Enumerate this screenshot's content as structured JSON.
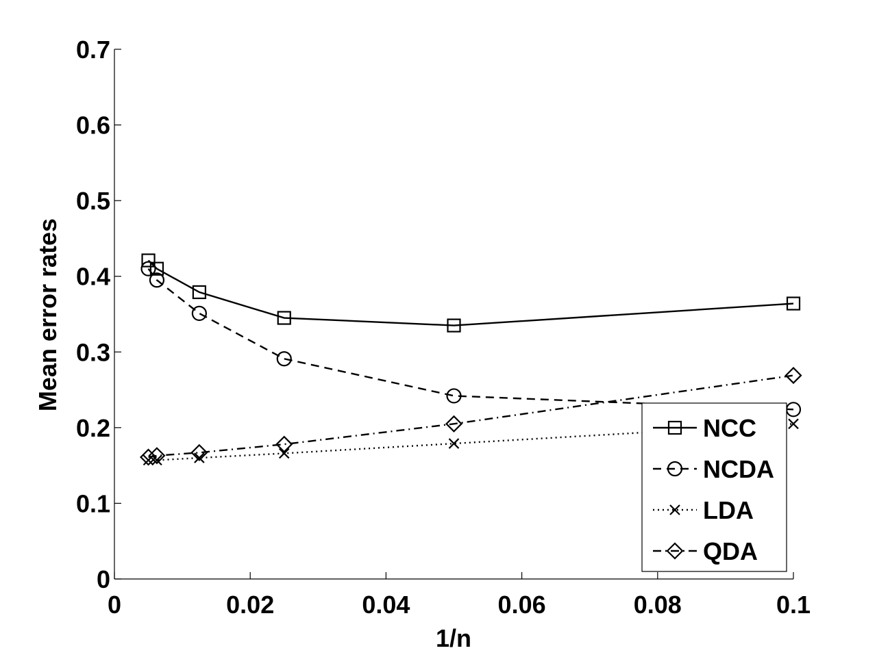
{
  "chart_data": {
    "type": "line",
    "title": "",
    "xlabel": "1/n",
    "ylabel": "Mean error rates",
    "xlim": [
      0,
      0.1
    ],
    "ylim": [
      0,
      0.7
    ],
    "xticks": [
      0,
      0.02,
      0.04,
      0.06,
      0.08,
      0.1
    ],
    "xtick_labels": [
      "0",
      "0.02",
      "0.04",
      "0.06",
      "0.08",
      "0.1"
    ],
    "yticks": [
      0,
      0.1,
      0.2,
      0.3,
      0.4,
      0.5,
      0.6,
      0.7
    ],
    "ytick_labels": [
      "0",
      "0.1",
      "0.2",
      "0.3",
      "0.4",
      "0.5",
      "0.6",
      "0.7"
    ],
    "grid": false,
    "legend_position": "bottom-right",
    "x": [
      0.005,
      0.00625,
      0.0125,
      0.025,
      0.05,
      0.1
    ],
    "series": [
      {
        "name": "NCC",
        "marker": "square",
        "line_style": "solid",
        "values": [
          0.421,
          0.41,
          0.379,
          0.345,
          0.335,
          0.364
        ]
      },
      {
        "name": "NCDA",
        "marker": "circle",
        "line_style": "dashed",
        "values": [
          0.41,
          0.395,
          0.351,
          0.291,
          0.242,
          0.224
        ]
      },
      {
        "name": "LDA",
        "marker": "x",
        "line_style": "dotted",
        "values": [
          0.157,
          0.157,
          0.16,
          0.166,
          0.179,
          0.205
        ]
      },
      {
        "name": "QDA",
        "marker": "diamond",
        "line_style": "dashdot",
        "values": [
          0.161,
          0.163,
          0.167,
          0.178,
          0.205,
          0.269
        ]
      }
    ]
  }
}
